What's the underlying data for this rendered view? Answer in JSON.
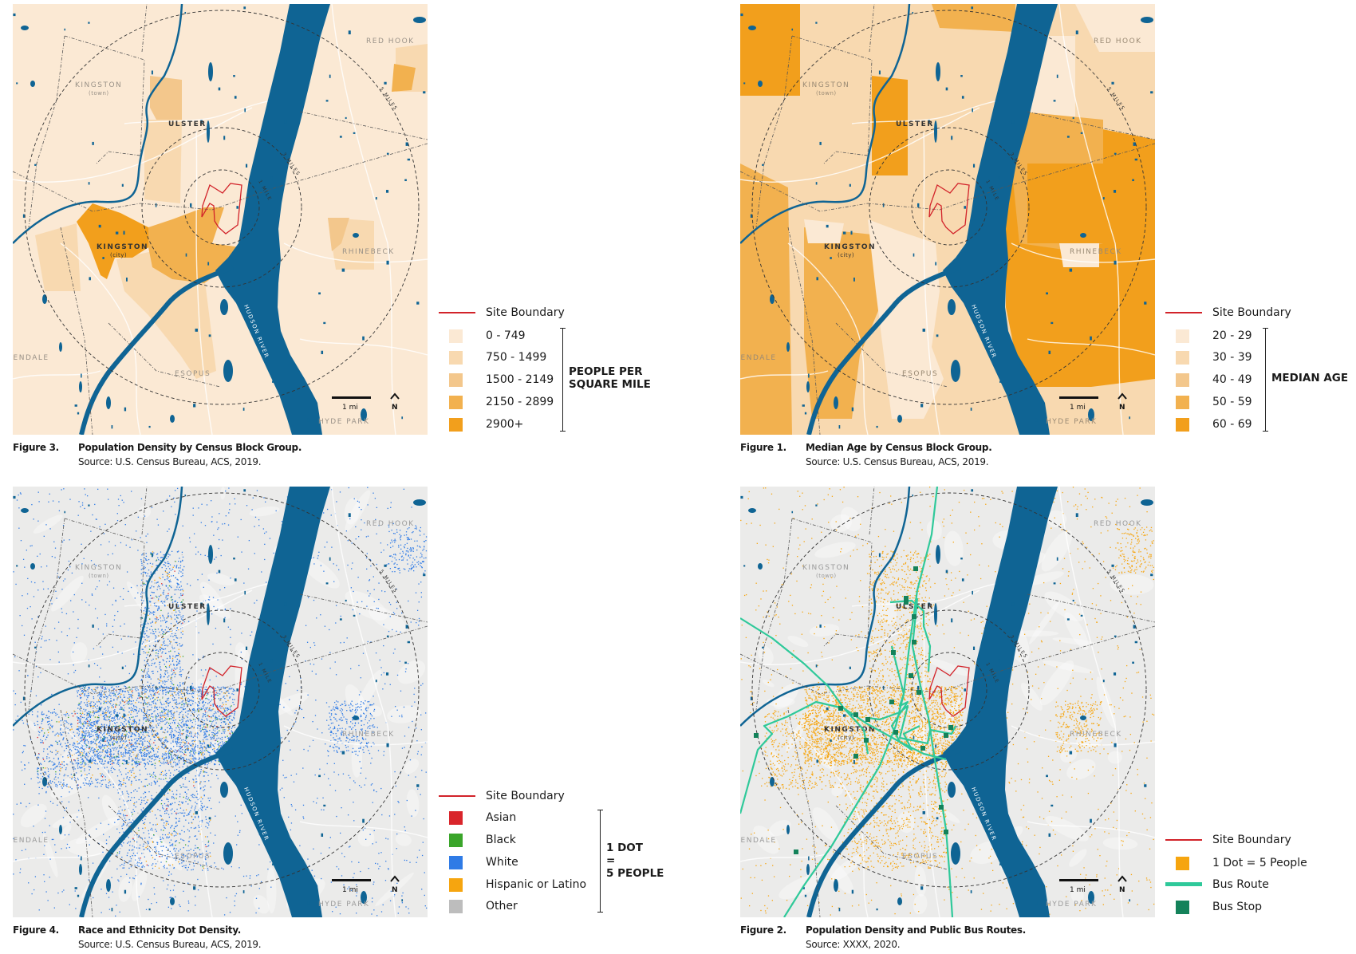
{
  "colors": {
    "water": "#0f6494",
    "site_boundary": "#d2232a",
    "bus_route": "#2fc99a",
    "bus_stop": "#14825a",
    "choropleth": [
      "#fbe9d4",
      "#f8d9b0",
      "#f3c78c",
      "#f2b14f",
      "#f29f1c"
    ],
    "asian": "#d9252b",
    "black": "#3aa52a",
    "white": "#2f7be6",
    "hispanic": "#f6a50f",
    "other": "#bdbdbd"
  },
  "map_labels": {
    "red_hook": "RED HOOK",
    "kingston_town": "KINGSTON",
    "kingston_town_sub": "(town)",
    "ulster": "ULSTER",
    "kingston_city": "KINGSTON",
    "kingston_city_sub": "(city)",
    "rhinebeck": "RHINEBECK",
    "esopus": "ESOPUS",
    "rosendale": "ROSENDALE",
    "hyde_park": "HYDE PARK",
    "hudson_river": "HUDSON RIVER",
    "ring_1": "1 MILE",
    "ring_3": "3 MILES",
    "ring_5": "5 MILES",
    "scale": "1 mi",
    "north": "N"
  },
  "figures": {
    "fig3": {
      "number": "Figure 3.",
      "title": "Population Density by Census Block Group.",
      "source": "Source: U.S. Census Bureau, ACS, 2019.",
      "legend": {
        "site_boundary": "Site Boundary",
        "classes": [
          "0 - 749",
          "750 - 1499",
          "1500 - 2149",
          "2150 - 2899",
          "2900+"
        ],
        "group_label_1": "PEOPLE PER",
        "group_label_2": "SQUARE MILE"
      }
    },
    "fig1": {
      "number": "Figure 1.",
      "title": "Median Age by Census Block Group.",
      "source": "Source: U.S. Census Bureau, ACS, 2019.",
      "legend": {
        "site_boundary": "Site Boundary",
        "classes": [
          "20 - 29",
          "30 - 39",
          "40 - 49",
          "50 - 59",
          "60 - 69"
        ],
        "group_label_1": "MEDIAN AGE"
      }
    },
    "fig4": {
      "number": "Figure 4.",
      "title": "Race and Ethnicity Dot Density.",
      "source": "Source: U.S. Census Bureau, ACS, 2019.",
      "legend": {
        "site_boundary": "Site Boundary",
        "classes": [
          "Asian",
          "Black",
          "White",
          "Hispanic or Latino",
          "Other"
        ],
        "group_label_1": "1 DOT",
        "group_label_2": "=",
        "group_label_3": "5 PEOPLE"
      }
    },
    "fig2": {
      "number": "Figure 2.",
      "title": "Population Density and Public Bus Routes.",
      "source": "Source: XXXX, 2020.",
      "legend": {
        "site_boundary": "Site Boundary",
        "dot": "1 Dot = 5 People",
        "bus_route": "Bus Route",
        "bus_stop": "Bus Stop"
      }
    }
  }
}
